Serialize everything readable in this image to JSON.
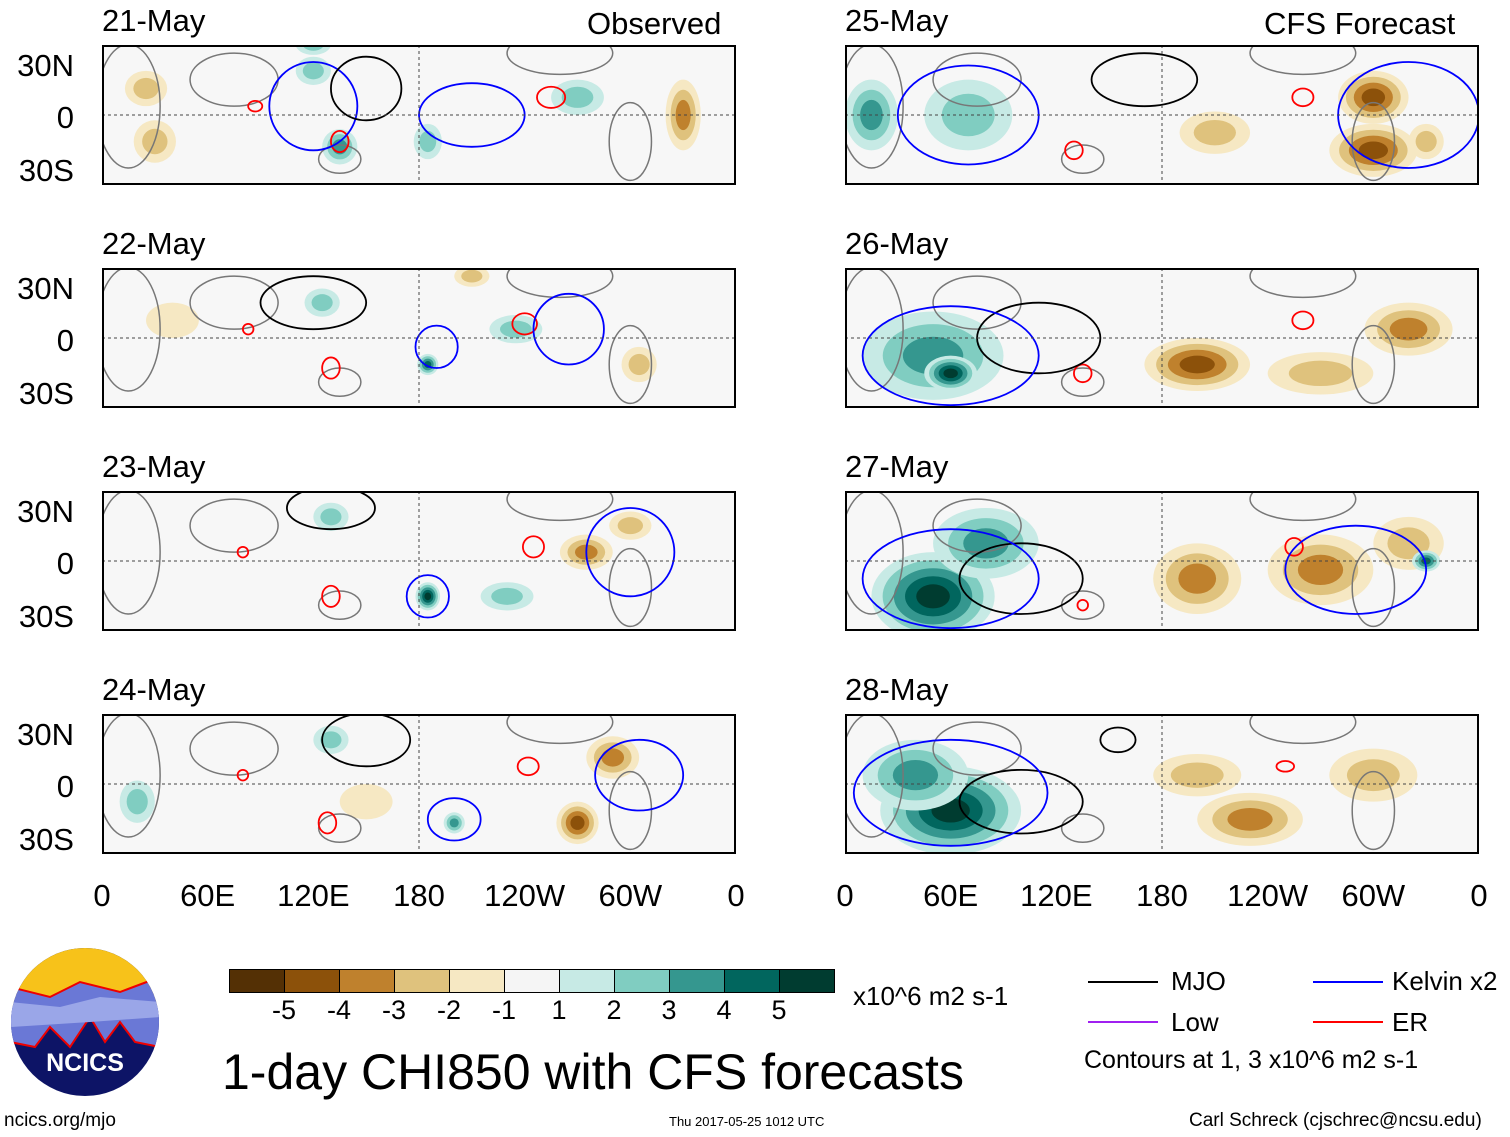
{
  "headers": {
    "observed": "Observed",
    "forecast": "CFS Forecast"
  },
  "panels": [
    {
      "date": "21-May",
      "blobs": [
        [
          25,
          15,
          12,
          10,
          -2
        ],
        [
          30,
          -15,
          12,
          12,
          -2
        ],
        [
          120,
          25,
          10,
          8,
          2
        ],
        [
          135,
          -18,
          10,
          10,
          3
        ],
        [
          185,
          -15,
          8,
          10,
          2
        ],
        [
          270,
          10,
          15,
          10,
          2
        ],
        [
          330,
          0,
          10,
          20,
          -3
        ],
        [
          120,
          40,
          10,
          6,
          2
        ]
      ],
      "contours": [
        [
          "ER",
          87,
          5,
          4,
          3
        ],
        [
          "ER",
          135,
          -15,
          5,
          6
        ],
        [
          "ER",
          255,
          10,
          8,
          6
        ],
        [
          "Kelvin",
          120,
          5,
          25,
          25
        ],
        [
          "MJO",
          150,
          15,
          20,
          18
        ],
        [
          "Kelvin",
          210,
          0,
          30,
          18
        ]
      ]
    },
    {
      "date": "22-May",
      "blobs": [
        [
          125,
          20,
          10,
          8,
          2
        ],
        [
          185,
          -15,
          6,
          6,
          4
        ],
        [
          235,
          5,
          15,
          8,
          2
        ],
        [
          305,
          -15,
          10,
          10,
          -2
        ],
        [
          40,
          10,
          15,
          10,
          -1
        ],
        [
          210,
          35,
          10,
          6,
          -2
        ]
      ],
      "contours": [
        [
          "ER",
          83,
          5,
          3,
          3
        ],
        [
          "ER",
          130,
          -17,
          5,
          6
        ],
        [
          "ER",
          240,
          8,
          7,
          6
        ],
        [
          "MJO",
          120,
          20,
          30,
          15
        ],
        [
          "Kelvin",
          190,
          -5,
          12,
          12
        ],
        [
          "Kelvin",
          265,
          5,
          20,
          20
        ]
      ]
    },
    {
      "date": "23-May",
      "blobs": [
        [
          185,
          -20,
          7,
          8,
          5
        ],
        [
          275,
          5,
          15,
          10,
          -3
        ],
        [
          300,
          20,
          12,
          8,
          -2
        ],
        [
          130,
          25,
          10,
          8,
          2
        ],
        [
          230,
          -20,
          15,
          8,
          2
        ]
      ],
      "contours": [
        [
          "ER",
          80,
          5,
          3,
          3
        ],
        [
          "ER",
          130,
          -20,
          5,
          6
        ],
        [
          "ER",
          245,
          8,
          6,
          6
        ],
        [
          "MJO",
          130,
          30,
          25,
          12
        ],
        [
          "Kelvin",
          185,
          -20,
          12,
          12
        ],
        [
          "Kelvin",
          300,
          5,
          25,
          25
        ]
      ]
    },
    {
      "date": "24-May",
      "blobs": [
        [
          270,
          -22,
          12,
          12,
          -4
        ],
        [
          290,
          15,
          15,
          12,
          -3
        ],
        [
          130,
          25,
          10,
          8,
          2
        ],
        [
          200,
          -22,
          6,
          6,
          3
        ],
        [
          150,
          -10,
          15,
          10,
          -1
        ],
        [
          20,
          -10,
          10,
          12,
          2
        ]
      ],
      "contours": [
        [
          "ER",
          80,
          5,
          3,
          3
        ],
        [
          "ER",
          128,
          -22,
          5,
          6
        ],
        [
          "ER",
          242,
          10,
          6,
          5
        ],
        [
          "MJO",
          150,
          25,
          25,
          15
        ],
        [
          "Kelvin",
          200,
          -20,
          15,
          12
        ],
        [
          "Kelvin",
          305,
          5,
          25,
          20
        ]
      ]
    },
    {
      "date": "25-May",
      "blobs": [
        [
          15,
          0,
          15,
          20,
          3
        ],
        [
          70,
          0,
          25,
          20,
          2
        ],
        [
          210,
          -10,
          20,
          12,
          -2
        ],
        [
          300,
          -20,
          25,
          15,
          -4
        ],
        [
          300,
          10,
          20,
          15,
          -4
        ],
        [
          330,
          -15,
          10,
          10,
          -2
        ]
      ],
      "contours": [
        [
          "ER",
          260,
          10,
          6,
          5
        ],
        [
          "ER",
          130,
          -20,
          5,
          5
        ],
        [
          "MJO",
          170,
          20,
          30,
          15
        ],
        [
          "Kelvin",
          70,
          0,
          40,
          28
        ],
        [
          "Kelvin",
          320,
          0,
          40,
          30
        ]
      ]
    },
    {
      "date": "26-May",
      "blobs": [
        [
          50,
          -10,
          40,
          25,
          3
        ],
        [
          60,
          -20,
          15,
          10,
          5
        ],
        [
          200,
          -15,
          30,
          15,
          -4
        ],
        [
          320,
          5,
          25,
          15,
          -3
        ],
        [
          270,
          -20,
          30,
          12,
          -2
        ]
      ],
      "contours": [
        [
          "ER",
          260,
          10,
          6,
          5
        ],
        [
          "ER",
          135,
          -20,
          5,
          5
        ],
        [
          "MJO",
          110,
          0,
          35,
          20
        ],
        [
          "Kelvin",
          60,
          -10,
          50,
          28
        ]
      ]
    },
    {
      "date": "27-May",
      "blobs": [
        [
          50,
          -20,
          35,
          25,
          5
        ],
        [
          80,
          10,
          30,
          20,
          3
        ],
        [
          200,
          -10,
          25,
          20,
          -3
        ],
        [
          270,
          -5,
          30,
          20,
          -3
        ],
        [
          320,
          10,
          20,
          15,
          -2
        ],
        [
          330,
          0,
          8,
          6,
          4
        ]
      ],
      "contours": [
        [
          "ER",
          255,
          8,
          5,
          5
        ],
        [
          "ER",
          135,
          -25,
          3,
          3
        ],
        [
          "MJO",
          100,
          -10,
          35,
          20
        ],
        [
          "Kelvin",
          60,
          -10,
          50,
          28
        ],
        [
          "Kelvin",
          290,
          -5,
          40,
          25
        ]
      ]
    },
    {
      "date": "28-May",
      "blobs": [
        [
          60,
          -15,
          40,
          25,
          5
        ],
        [
          40,
          5,
          30,
          20,
          3
        ],
        [
          230,
          -20,
          30,
          15,
          -3
        ],
        [
          200,
          5,
          25,
          12,
          -2
        ],
        [
          300,
          5,
          25,
          15,
          -2
        ]
      ],
      "contours": [
        [
          "ER",
          250,
          10,
          5,
          3
        ],
        [
          "MJO",
          100,
          -10,
          35,
          18
        ],
        [
          "MJO",
          155,
          25,
          10,
          7
        ],
        [
          "Kelvin",
          60,
          -5,
          55,
          30
        ]
      ]
    }
  ],
  "lat_labels": [
    "30N",
    "0",
    "30S"
  ],
  "lon_labels": [
    "0",
    "60E",
    "120E",
    "180",
    "120W",
    "60W",
    "0"
  ],
  "colorbar": {
    "colors": [
      "#543005",
      "#8c510a",
      "#bf812d",
      "#dfc27d",
      "#f6e8c3",
      "#f5f5f5",
      "#c7eae5",
      "#80cdc1",
      "#35978f",
      "#01665e",
      "#003c30"
    ],
    "ticks": [
      "-5",
      "-4",
      "-3",
      "-2",
      "-1",
      "1",
      "2",
      "3",
      "4",
      "5"
    ],
    "units": "x10^6 m2 s-1"
  },
  "legend": {
    "mjo": "MJO",
    "kelvin": "Kelvin x2",
    "low": "Low",
    "er": "ER",
    "note": "Contours at 1, 3 x10^6 m2 s-1",
    "colors": {
      "MJO": "#000000",
      "Kelvin": "#0000ff",
      "Low": "#a020f0",
      "ER": "#ff0000"
    }
  },
  "title": "1-day CHI850 with CFS forecasts",
  "logo": "NCICS",
  "footer": {
    "url": "ncics.org/mjo",
    "timestamp": "Thu 2017-05-25 1012 UTC",
    "author": "Carl Schreck (cjschrec@ncsu.edu)"
  }
}
